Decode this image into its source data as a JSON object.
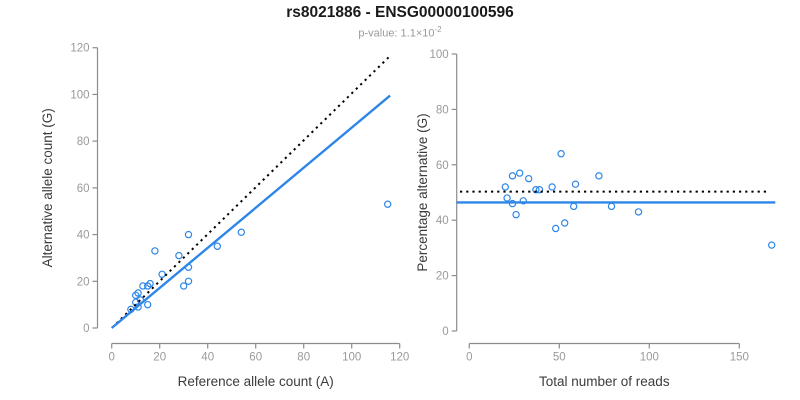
{
  "header": {
    "title": "rs8021886 - ENSG00000100596",
    "pvalue_prefix": "p-value: 1.1×10",
    "pvalue_exponent": "-2"
  },
  "colors": {
    "accent_blue": "#2e86e8",
    "dotted_black": "#000000",
    "axis_stroke": "#8c8c8c",
    "tick_text": "#9a9a9a",
    "axis_label_text": "#3c3c3c"
  },
  "chart_data": [
    {
      "type": "scatter",
      "name": "allele-counts-scatter",
      "xlabel": "Reference allele count (A)",
      "ylabel": "Alternative allele count (G)",
      "xlim": [
        0,
        120
      ],
      "ylim": [
        0,
        120
      ],
      "xticks": [
        0,
        20,
        40,
        60,
        80,
        100,
        120
      ],
      "yticks": [
        0,
        20,
        40,
        60,
        80,
        100,
        120
      ],
      "grid": false,
      "points": [
        [
          115,
          53
        ],
        [
          54,
          41
        ],
        [
          44,
          35
        ],
        [
          32,
          40
        ],
        [
          18,
          33
        ],
        [
          28,
          31
        ],
        [
          32,
          26
        ],
        [
          21,
          23
        ],
        [
          32,
          20
        ],
        [
          30,
          18
        ],
        [
          16,
          19
        ],
        [
          15,
          18
        ],
        [
          13,
          18
        ],
        [
          11,
          15
        ],
        [
          10,
          14
        ],
        [
          12,
          12
        ],
        [
          10,
          11
        ],
        [
          15,
          10
        ],
        [
          11,
          9
        ],
        [
          8,
          8
        ]
      ],
      "lines": [
        {
          "name": "identity-line",
          "style": "dotted",
          "color": "#000000",
          "x1": 2,
          "y1": 2,
          "x2": 115.5,
          "y2": 116
        },
        {
          "name": "regression-line",
          "style": "solid",
          "color": "#2e86e8",
          "x1": 0,
          "y1": 0,
          "x2": 116,
          "y2": 99.5
        }
      ]
    },
    {
      "type": "scatter",
      "name": "percentage-vs-reads-scatter",
      "xlabel": "Total number of reads",
      "ylabel": "Percentage alternative (G)",
      "xlim": [
        0,
        170
      ],
      "ylim": [
        0,
        100
      ],
      "xticks": [
        0,
        50,
        100,
        150
      ],
      "yticks": [
        0,
        20,
        40,
        60,
        80,
        100
      ],
      "grid": false,
      "points": [
        [
          168,
          31
        ],
        [
          51,
          64
        ],
        [
          24,
          56
        ],
        [
          28,
          57
        ],
        [
          33,
          55
        ],
        [
          72,
          56
        ],
        [
          20,
          52
        ],
        [
          37,
          51
        ],
        [
          39,
          51
        ],
        [
          46,
          52
        ],
        [
          59,
          53
        ],
        [
          21,
          48
        ],
        [
          24,
          46
        ],
        [
          30,
          47
        ],
        [
          26,
          42
        ],
        [
          58,
          45
        ],
        [
          79,
          45
        ],
        [
          94,
          43
        ],
        [
          48,
          37
        ],
        [
          53,
          39
        ]
      ],
      "lines": [
        {
          "name": "expected-50-percent-line",
          "style": "dotted",
          "color": "#000000",
          "y": 50.3
        },
        {
          "name": "fitted-percentage-line",
          "style": "solid",
          "color": "#2e86e8",
          "y": 46.4
        }
      ]
    }
  ]
}
